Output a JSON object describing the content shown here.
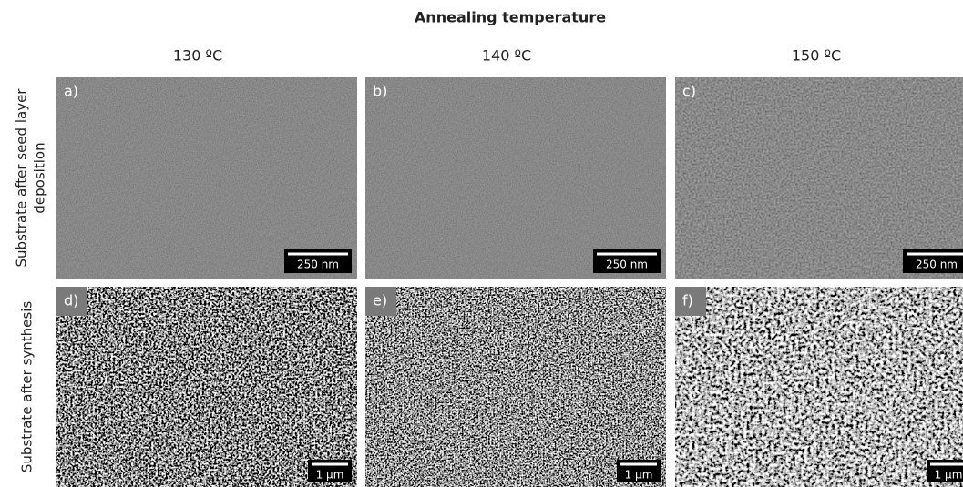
{
  "header": {
    "title": "Annealing temperature"
  },
  "columns": [
    "130 ºC",
    "140 ºC",
    "150 ºC"
  ],
  "rows": [
    {
      "label": [
        "Substrate after seed layer",
        "deposition"
      ],
      "panels": [
        {
          "label": "a)",
          "scale_bar": "250 nm"
        },
        {
          "label": "b)",
          "scale_bar": "250 nm"
        },
        {
          "label": "c)",
          "scale_bar": "250 nm"
        }
      ]
    },
    {
      "label": [
        "Substrate after synthesis"
      ],
      "panels": [
        {
          "label": "d)",
          "scale_bar": "1 µm"
        },
        {
          "label": "e)",
          "scale_bar": "1 µm"
        },
        {
          "label": "f)",
          "scale_bar": "1 µm"
        }
      ]
    }
  ]
}
